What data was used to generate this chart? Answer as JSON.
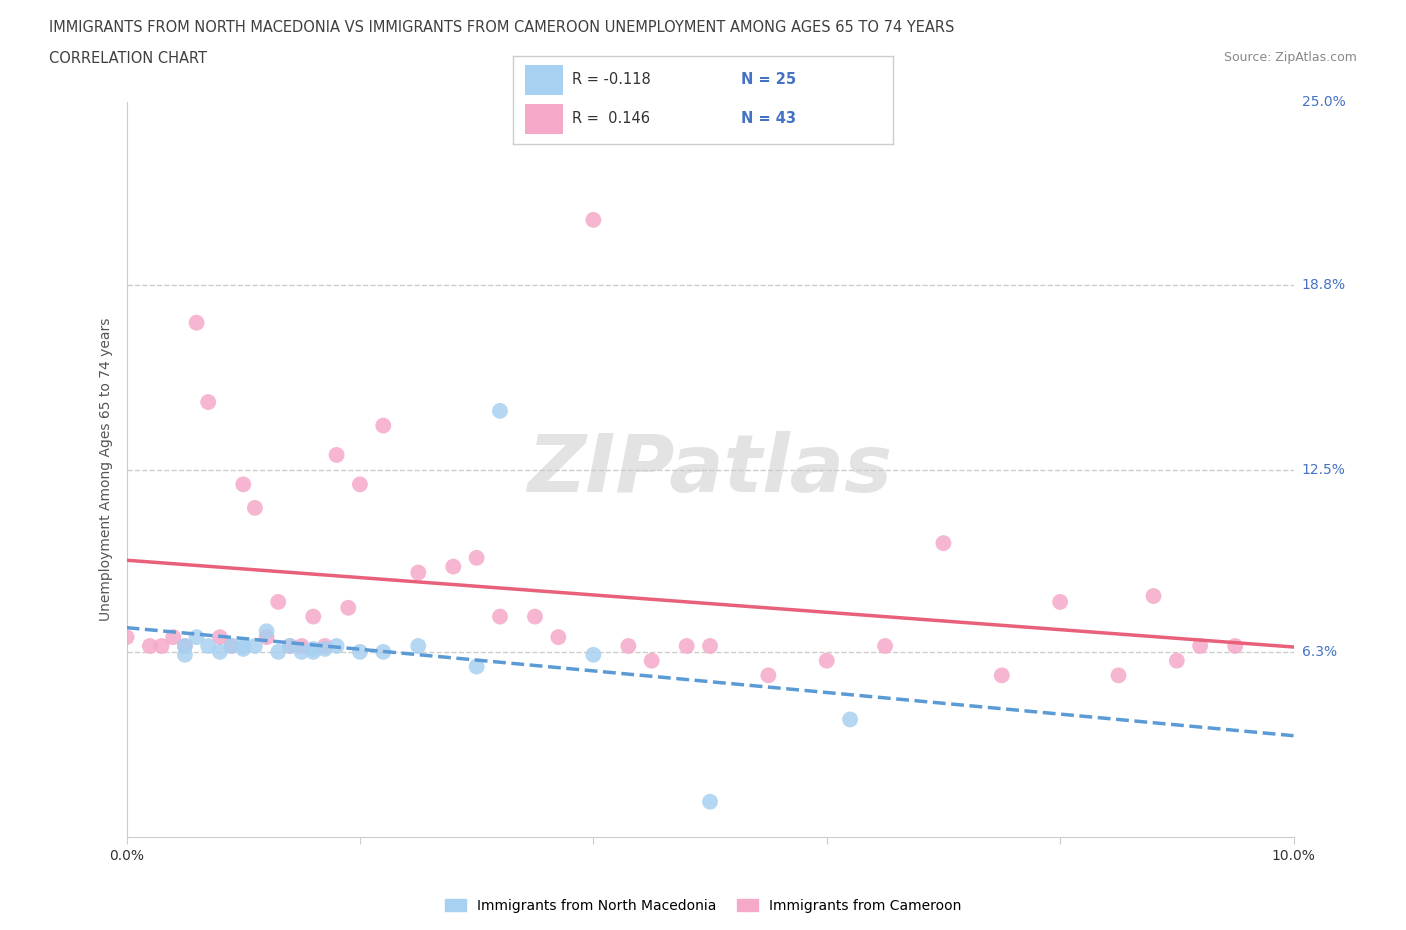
{
  "title_line1": "IMMIGRANTS FROM NORTH MACEDONIA VS IMMIGRANTS FROM CAMEROON UNEMPLOYMENT AMONG AGES 65 TO 74 YEARS",
  "title_line2": "CORRELATION CHART",
  "source_text": "Source: ZipAtlas.com",
  "ylabel": "Unemployment Among Ages 65 to 74 years",
  "xlim": [
    0.0,
    0.1
  ],
  "ylim": [
    0.0,
    0.25
  ],
  "color_macedonian": "#a8d0f0",
  "color_cameroonian": "#f5a8c8",
  "line_color_macedonian": "#5b9bd5",
  "line_color_cameroonian": "#e8607a",
  "text_color_blue": "#4472c4",
  "background_color": "#ffffff",
  "macedonian_x": [
    0.005,
    0.005,
    0.006,
    0.007,
    0.008,
    0.009,
    0.01,
    0.01,
    0.011,
    0.012,
    0.013,
    0.014,
    0.015,
    0.016,
    0.016,
    0.017,
    0.018,
    0.02,
    0.022,
    0.025,
    0.03,
    0.032,
    0.04,
    0.05,
    0.062
  ],
  "macedonian_y": [
    0.065,
    0.062,
    0.068,
    0.065,
    0.063,
    0.065,
    0.064,
    0.065,
    0.065,
    0.07,
    0.063,
    0.065,
    0.063,
    0.064,
    0.063,
    0.064,
    0.065,
    0.063,
    0.063,
    0.065,
    0.058,
    0.145,
    0.062,
    0.012,
    0.04
  ],
  "cameroonian_x": [
    0.0,
    0.002,
    0.003,
    0.004,
    0.005,
    0.006,
    0.007,
    0.008,
    0.009,
    0.01,
    0.011,
    0.012,
    0.013,
    0.014,
    0.015,
    0.016,
    0.017,
    0.018,
    0.019,
    0.02,
    0.022,
    0.025,
    0.028,
    0.03,
    0.032,
    0.035,
    0.037,
    0.04,
    0.043,
    0.045,
    0.048,
    0.05,
    0.055,
    0.06,
    0.065,
    0.07,
    0.075,
    0.08,
    0.085,
    0.088,
    0.09,
    0.092,
    0.095
  ],
  "cameroonian_y": [
    0.068,
    0.065,
    0.065,
    0.068,
    0.065,
    0.175,
    0.148,
    0.068,
    0.065,
    0.12,
    0.112,
    0.068,
    0.08,
    0.065,
    0.065,
    0.075,
    0.065,
    0.13,
    0.078,
    0.12,
    0.14,
    0.09,
    0.092,
    0.095,
    0.075,
    0.075,
    0.068,
    0.21,
    0.065,
    0.06,
    0.065,
    0.065,
    0.055,
    0.06,
    0.065,
    0.1,
    0.055,
    0.08,
    0.055,
    0.082,
    0.06,
    0.065,
    0.065
  ]
}
